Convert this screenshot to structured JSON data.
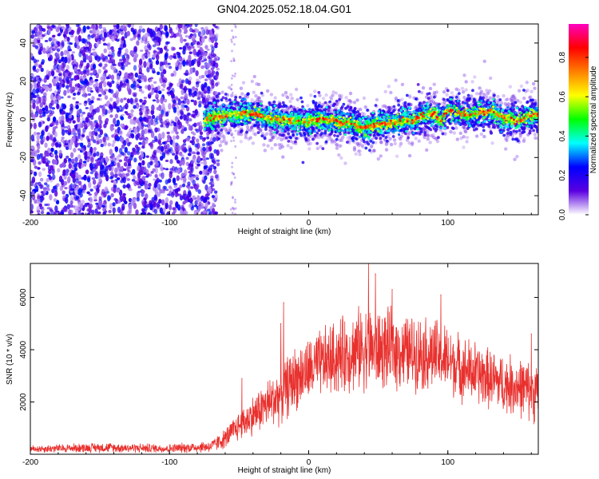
{
  "chart_data": [
    {
      "type": "heatmap",
      "title": "GN04.2025.052.18.04.G01",
      "xlabel": "Height of straight line (km)",
      "ylabel": "Frequency (Hz)",
      "xlim": [
        -200,
        165
      ],
      "ylim": [
        -50,
        50
      ],
      "xticks": [
        -200,
        -100,
        0,
        100
      ],
      "xtick_labels": [
        "-200",
        "-100",
        "0",
        "100"
      ],
      "yticks": [
        -40,
        -20,
        0,
        20,
        40
      ],
      "ytick_labels": [
        "-40",
        "-20",
        "0",
        "20",
        "40"
      ],
      "noise_region_x": [
        -200,
        -65
      ],
      "signal_start_x": -75,
      "signal_ridge": {
        "x": [
          -75,
          -60,
          -50,
          -40,
          -30,
          -20,
          -10,
          0,
          10,
          20,
          25,
          30,
          40,
          45,
          50,
          60,
          70,
          75,
          80,
          90,
          95,
          100,
          110,
          115,
          120,
          130,
          140,
          150,
          160,
          165
        ],
        "y": [
          0,
          2,
          3,
          3,
          1,
          0,
          -1,
          -1,
          0,
          -1,
          -2,
          -2,
          -5,
          -3,
          -3,
          -2,
          0,
          -1,
          2,
          3,
          -1,
          5,
          3,
          2,
          3,
          4,
          1,
          -1,
          2,
          3
        ]
      },
      "colorbar": {
        "label": "Normalized spectral amplitude",
        "range": [
          0.0,
          0.97
        ],
        "ticks": [
          0.0,
          0.2,
          0.4,
          0.6,
          0.8
        ],
        "tick_labels": [
          "0.0",
          "0.2",
          "0.4",
          "0.6",
          "0.8"
        ],
        "colors": [
          "#ffffff",
          "#5a00e0",
          "#0000ff",
          "#00ffff",
          "#00ff00",
          "#ffff00",
          "#ff8000",
          "#ff0000",
          "#ff00c0"
        ]
      }
    },
    {
      "type": "line",
      "xlabel": "Height of straight line (km)",
      "ylabel": "SNR (10 * v/v)",
      "xlim": [
        -200,
        165
      ],
      "ylim": [
        0,
        7300
      ],
      "xticks": [
        -200,
        -100,
        0,
        100
      ],
      "xtick_labels": [
        "-200",
        "-100",
        "0",
        "100"
      ],
      "yticks": [
        2000,
        4000,
        6000
      ],
      "ytick_labels": [
        "2000",
        "4000",
        "6000"
      ],
      "line_color": "#e8312e",
      "envelope": {
        "x": [
          -200,
          -150,
          -100,
          -70,
          -60,
          -50,
          -40,
          -30,
          -20,
          -10,
          0,
          10,
          20,
          30,
          40,
          50,
          60,
          70,
          80,
          90,
          100,
          110,
          120,
          130,
          140,
          150,
          160,
          165
        ],
        "mean": [
          200,
          260,
          220,
          300,
          600,
          1100,
          1500,
          1900,
          2300,
          2900,
          3200,
          3500,
          3700,
          3900,
          4100,
          4000,
          4000,
          3900,
          3900,
          3800,
          3600,
          3300,
          3100,
          2900,
          2700,
          2600,
          2400,
          2300
        ],
        "spread": [
          150,
          200,
          180,
          250,
          400,
          600,
          800,
          1000,
          1200,
          1300,
          1300,
          1400,
          1500,
          1600,
          1700,
          1600,
          1600,
          1500,
          1500,
          1500,
          1400,
          1300,
          1300,
          1200,
          1200,
          1200,
          1200,
          1200
        ]
      },
      "peaks": [
        {
          "x": 43,
          "y": 7300
        },
        {
          "x": 48,
          "y": 6900
        },
        {
          "x": 60,
          "y": 6300
        },
        {
          "x": -18,
          "y": 5800
        },
        {
          "x": -20,
          "y": 5000
        },
        {
          "x": -48,
          "y": 2900
        },
        {
          "x": 95,
          "y": 6100
        },
        {
          "x": 160,
          "y": 4600
        }
      ]
    }
  ]
}
